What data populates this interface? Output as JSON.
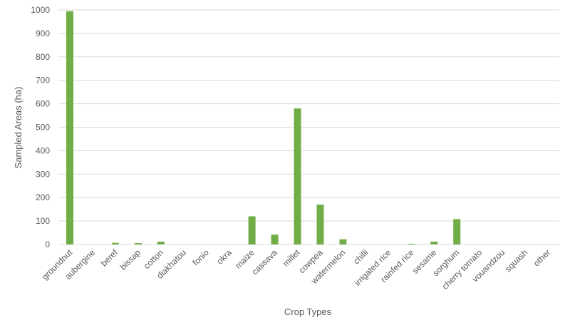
{
  "chart_data": {
    "type": "bar",
    "title": "",
    "xlabel": "Crop Types",
    "ylabel": "Sampled Areas (ha)",
    "ylim": [
      0,
      1000
    ],
    "yticks": [
      0,
      100,
      200,
      300,
      400,
      500,
      600,
      700,
      800,
      900,
      1000
    ],
    "grid": true,
    "categories": [
      "groundnut",
      "aubergine",
      "beref",
      "bissap",
      "cotton",
      "diakhatou",
      "fonio",
      "okra",
      "maize",
      "cassava",
      "millet",
      "cowpea",
      "watermelon",
      "chilli",
      "irrigated rice",
      "rainfed rice",
      "sesame",
      "sorghum",
      "cherry tomato",
      "vouandzou",
      "squash",
      "other"
    ],
    "values": [
      995,
      0,
      7,
      6,
      12,
      0,
      0,
      0,
      120,
      42,
      580,
      170,
      22,
      0,
      0,
      3,
      12,
      108,
      0,
      0,
      0,
      0
    ],
    "colors": {
      "bar": "#70ad47",
      "grid": "#d9d9d9",
      "text": "#595959"
    }
  }
}
